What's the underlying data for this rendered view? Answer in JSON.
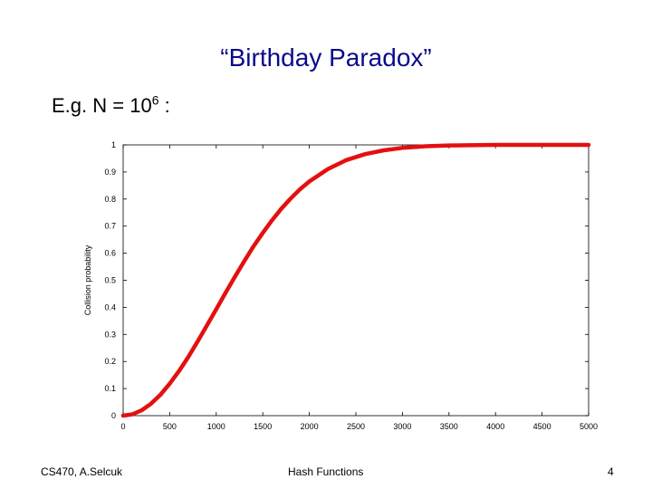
{
  "slide": {
    "title": "“Birthday Paradox”",
    "subtitle_prefix": "E.g. N = 10",
    "subtitle_exponent": "6",
    "subtitle_suffix": " :"
  },
  "footer": {
    "left": "CS470, A.Selcuk",
    "center": "Hash Functions",
    "page": "4"
  },
  "colors": {
    "curve": "#e31010",
    "title": "#0a0a8c",
    "axes": "#000000"
  },
  "chart_data": {
    "type": "line",
    "title": "",
    "xlabel": "",
    "ylabel": "Collision probability",
    "xlim": [
      0,
      5000
    ],
    "ylim": [
      0,
      1
    ],
    "x_ticks": [
      "0",
      "500",
      "1000",
      "1500",
      "2000",
      "2500",
      "3000",
      "3500",
      "4000",
      "4500",
      "5000"
    ],
    "y_ticks": [
      "0",
      "0.1",
      "0.2",
      "0.3",
      "0.4",
      "0.5",
      "0.6",
      "0.7",
      "0.8",
      "0.9",
      "1"
    ],
    "grid": false,
    "legend": "none",
    "series": [
      {
        "x": [
          0,
          100,
          200,
          300,
          400,
          500,
          600,
          700,
          800,
          900,
          1000,
          1100,
          1200,
          1300,
          1400,
          1500,
          1600,
          1700,
          1800,
          1900,
          2000,
          2200,
          2400,
          2600,
          2800,
          3000,
          3250,
          3500,
          4000,
          4500,
          5000
        ],
        "y": [
          0,
          0.005,
          0.02,
          0.044,
          0.077,
          0.118,
          0.165,
          0.217,
          0.274,
          0.333,
          0.393,
          0.454,
          0.513,
          0.57,
          0.625,
          0.675,
          0.722,
          0.765,
          0.802,
          0.836,
          0.865,
          0.911,
          0.944,
          0.966,
          0.98,
          0.989,
          0.995,
          0.998,
          1.0,
          1.0,
          1.0
        ]
      }
    ]
  }
}
